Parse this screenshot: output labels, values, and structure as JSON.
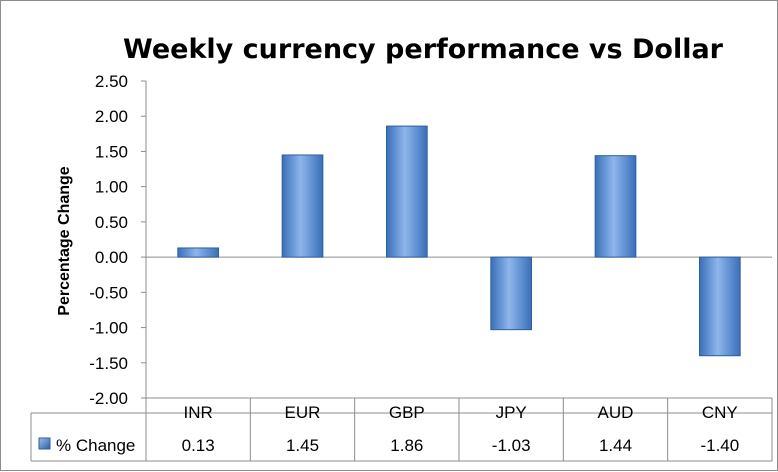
{
  "chart_data": {
    "type": "bar",
    "title": "Weekly currency performance vs Dollar",
    "xlabel": "",
    "ylabel": "Percentage Change",
    "categories": [
      "INR",
      "EUR",
      "GBP",
      "JPY",
      "AUD",
      "CNY"
    ],
    "series": [
      {
        "name": "% Change",
        "values": [
          0.13,
          1.45,
          1.86,
          -1.03,
          1.44,
          -1.4
        ]
      }
    ],
    "value_labels": [
      "0.13",
      "1.45",
      "1.86",
      "-1.03",
      "1.44",
      "-1.40"
    ],
    "ylim": [
      -2.0,
      2.5
    ],
    "yticks": [
      "2.50",
      "2.00",
      "1.50",
      "1.00",
      "0.50",
      "0.00",
      "-0.50",
      "-1.00",
      "-1.50",
      "-2.00"
    ],
    "grid": false,
    "legend": "data-table",
    "colors": {
      "bar": "#5b8fd8",
      "bar_dark": "#2e5f9e",
      "bar_light": "#a9c8f0"
    }
  }
}
